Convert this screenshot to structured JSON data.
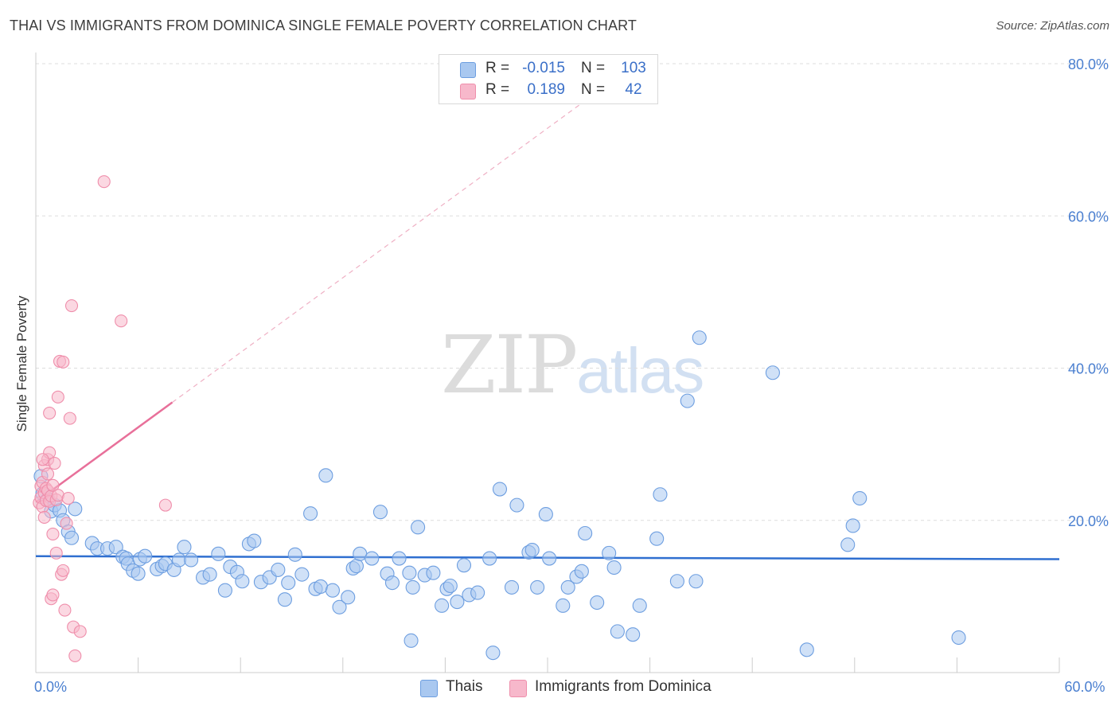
{
  "title": "THAI VS IMMIGRANTS FROM DOMINICA SINGLE FEMALE POVERTY CORRELATION CHART",
  "source": "Source: ZipAtlas.com",
  "watermark": {
    "part1": "ZIP",
    "part2": "atlas"
  },
  "legend": {
    "rows": [
      {
        "r_label": "R =",
        "r_value": "-0.015",
        "n_label": "N =",
        "n_value": "103",
        "color": "#a9c8f0"
      },
      {
        "r_label": "R =",
        "r_value": "0.189",
        "n_label": "N =",
        "n_value": "42",
        "color": "#f7b8cb"
      }
    ]
  },
  "bottom_legend": [
    {
      "label": "Thais",
      "color": "#a9c8f0"
    },
    {
      "label": "Immigrants from Dominica",
      "color": "#f7b8cb"
    }
  ],
  "colors": {
    "blue_fill": "#a9c8f0",
    "blue_stroke": "#6d9ee0",
    "blue_line": "#2f6fd0",
    "pink_fill": "#f7b8cb",
    "pink_stroke": "#ef8eab",
    "pink_line": "#e8709a",
    "grid": "#dddddd",
    "axis_text": "#4a7fd0"
  },
  "chart_data": {
    "type": "scatter",
    "title": "THAI VS IMMIGRANTS FROM DOMINICA SINGLE FEMALE POVERTY CORRELATION CHART",
    "xlabel": "",
    "ylabel": "Single Female Poverty",
    "xlim": [
      0,
      60
    ],
    "ylim": [
      0,
      80
    ],
    "x_tick_labels": [
      {
        "value": 0,
        "label": "0.0%"
      },
      {
        "value": 60,
        "label": "60.0%"
      }
    ],
    "y_tick_labels": [
      {
        "value": 20,
        "label": "20.0%"
      },
      {
        "value": 40,
        "label": "40.0%"
      },
      {
        "value": 60,
        "label": "60.0%"
      },
      {
        "value": 80,
        "label": "80.0%"
      }
    ],
    "series": [
      {
        "name": "Thais",
        "r": -0.015,
        "n": 103,
        "trend": {
          "x": [
            0,
            60
          ],
          "y": [
            15.3,
            14.9
          ],
          "style": "solid"
        },
        "points": [
          [
            0.3,
            25.8
          ],
          [
            0.4,
            23.5
          ],
          [
            0.7,
            22.8
          ],
          [
            0.9,
            21.2
          ],
          [
            1.1,
            22.0
          ],
          [
            1.4,
            21.3
          ],
          [
            1.6,
            20.0
          ],
          [
            2.3,
            21.5
          ],
          [
            1.9,
            18.5
          ],
          [
            2.1,
            17.7
          ],
          [
            3.3,
            17.0
          ],
          [
            3.6,
            16.3
          ],
          [
            4.2,
            16.3
          ],
          [
            4.7,
            16.5
          ],
          [
            5.1,
            15.2
          ],
          [
            5.3,
            15.0
          ],
          [
            5.4,
            14.3
          ],
          [
            5.7,
            13.4
          ],
          [
            6.0,
            13.0
          ],
          [
            6.1,
            14.9
          ],
          [
            6.4,
            15.3
          ],
          [
            7.1,
            13.6
          ],
          [
            7.4,
            14.0
          ],
          [
            7.6,
            14.3
          ],
          [
            8.1,
            13.5
          ],
          [
            8.4,
            14.8
          ],
          [
            8.7,
            16.5
          ],
          [
            9.1,
            14.8
          ],
          [
            9.8,
            12.5
          ],
          [
            10.2,
            12.9
          ],
          [
            10.7,
            15.6
          ],
          [
            11.1,
            10.8
          ],
          [
            11.4,
            13.9
          ],
          [
            11.8,
            13.2
          ],
          [
            12.1,
            12.0
          ],
          [
            12.5,
            16.9
          ],
          [
            12.8,
            17.3
          ],
          [
            13.2,
            11.9
          ],
          [
            13.7,
            12.5
          ],
          [
            14.2,
            13.5
          ],
          [
            14.6,
            9.6
          ],
          [
            14.8,
            11.8
          ],
          [
            15.2,
            15.5
          ],
          [
            15.6,
            12.9
          ],
          [
            16.1,
            20.9
          ],
          [
            16.4,
            11.0
          ],
          [
            16.7,
            11.3
          ],
          [
            17.0,
            25.9
          ],
          [
            17.4,
            10.8
          ],
          [
            17.8,
            8.6
          ],
          [
            18.3,
            9.9
          ],
          [
            18.6,
            13.7
          ],
          [
            18.8,
            14.0
          ],
          [
            19.0,
            15.6
          ],
          [
            19.7,
            15.0
          ],
          [
            20.2,
            21.1
          ],
          [
            20.6,
            13.0
          ],
          [
            20.9,
            11.8
          ],
          [
            21.3,
            15.0
          ],
          [
            21.9,
            13.1
          ],
          [
            22.1,
            11.2
          ],
          [
            22.4,
            19.1
          ],
          [
            22.8,
            12.8
          ],
          [
            23.3,
            13.1
          ],
          [
            23.8,
            8.8
          ],
          [
            24.1,
            11.0
          ],
          [
            24.3,
            11.4
          ],
          [
            24.7,
            9.3
          ],
          [
            25.1,
            14.1
          ],
          [
            25.4,
            10.2
          ],
          [
            25.9,
            10.5
          ],
          [
            26.6,
            15.0
          ],
          [
            26.8,
            2.6
          ],
          [
            27.2,
            24.1
          ],
          [
            27.9,
            11.2
          ],
          [
            28.2,
            22.0
          ],
          [
            28.9,
            15.8
          ],
          [
            29.1,
            16.1
          ],
          [
            29.4,
            11.2
          ],
          [
            29.9,
            20.8
          ],
          [
            30.1,
            15.0
          ],
          [
            30.9,
            8.8
          ],
          [
            31.2,
            11.2
          ],
          [
            31.7,
            12.6
          ],
          [
            32.0,
            13.3
          ],
          [
            32.2,
            18.3
          ],
          [
            32.9,
            9.2
          ],
          [
            33.6,
            15.7
          ],
          [
            33.9,
            13.8
          ],
          [
            34.1,
            5.4
          ],
          [
            35.0,
            5.0
          ],
          [
            35.4,
            8.8
          ],
          [
            36.4,
            17.6
          ],
          [
            36.6,
            23.4
          ],
          [
            37.6,
            12.0
          ],
          [
            38.7,
            12.0
          ],
          [
            22.0,
            4.2
          ],
          [
            38.2,
            35.7
          ],
          [
            38.9,
            44.0
          ],
          [
            43.2,
            39.4
          ],
          [
            45.2,
            3.0
          ],
          [
            47.6,
            16.8
          ],
          [
            47.9,
            19.3
          ],
          [
            48.3,
            22.9
          ],
          [
            54.1,
            4.6
          ]
        ]
      },
      {
        "name": "Immigrants from Dominica",
        "r": 0.189,
        "n": 42,
        "trend": {
          "x": [
            0,
            8.0
          ],
          "y": [
            22.4,
            35.5
          ],
          "style": "solid",
          "extended_x": [
            8.0,
            32.0
          ],
          "extended_y": [
            35.5,
            74.8
          ],
          "extended_style": "dashed"
        },
        "points": [
          [
            0.2,
            22.3
          ],
          [
            0.3,
            23.0
          ],
          [
            0.3,
            24.5
          ],
          [
            0.4,
            21.8
          ],
          [
            0.4,
            25.0
          ],
          [
            0.5,
            23.6
          ],
          [
            0.5,
            27.2
          ],
          [
            0.5,
            20.4
          ],
          [
            0.6,
            22.6
          ],
          [
            0.6,
            24.2
          ],
          [
            0.7,
            23.9
          ],
          [
            0.7,
            26.1
          ],
          [
            0.7,
            28.0
          ],
          [
            0.8,
            22.5
          ],
          [
            0.8,
            28.9
          ],
          [
            0.8,
            34.1
          ],
          [
            0.9,
            23.2
          ],
          [
            0.9,
            9.7
          ],
          [
            1.0,
            10.2
          ],
          [
            1.0,
            24.6
          ],
          [
            1.0,
            18.2
          ],
          [
            1.1,
            27.5
          ],
          [
            1.2,
            15.7
          ],
          [
            1.2,
            22.7
          ],
          [
            1.3,
            23.3
          ],
          [
            1.3,
            36.2
          ],
          [
            1.4,
            40.9
          ],
          [
            1.5,
            12.9
          ],
          [
            1.6,
            13.4
          ],
          [
            1.6,
            40.8
          ],
          [
            1.7,
            8.2
          ],
          [
            1.8,
            19.6
          ],
          [
            1.9,
            22.9
          ],
          [
            2.0,
            33.4
          ],
          [
            2.1,
            48.2
          ],
          [
            2.2,
            6.0
          ],
          [
            2.3,
            2.2
          ],
          [
            2.6,
            5.4
          ],
          [
            4.0,
            64.5
          ],
          [
            5.0,
            46.2
          ],
          [
            7.6,
            22.0
          ],
          [
            0.4,
            28.0
          ]
        ]
      }
    ]
  }
}
